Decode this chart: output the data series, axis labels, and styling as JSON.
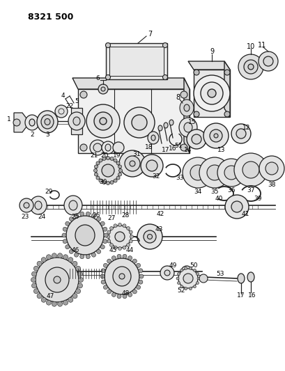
{
  "title": "8321 500",
  "bg": "#ffffff",
  "lc": "#222222",
  "figsize": [
    4.1,
    5.33
  ],
  "dpi": 100
}
